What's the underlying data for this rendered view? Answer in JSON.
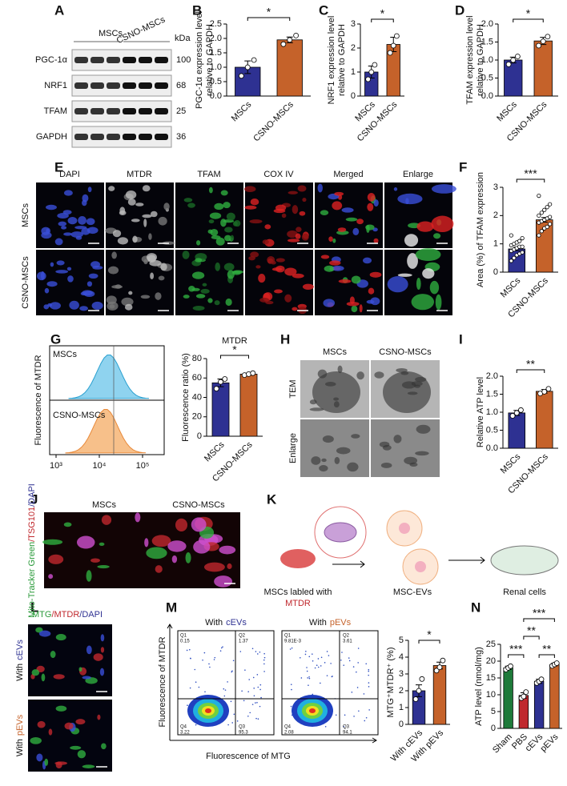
{
  "panels": {
    "A": {
      "label": "A",
      "groups": [
        "MSCs",
        "CSNO-MSCs"
      ],
      "unit": "kDa",
      "rows": [
        {
          "protein": "PGC-1α",
          "kda": 100
        },
        {
          "protein": "NRF1",
          "kda": 68
        },
        {
          "protein": "TFAM",
          "kda": 25
        },
        {
          "protein": "GAPDH",
          "kda": 36
        }
      ]
    },
    "B": {
      "label": "B",
      "type": "bar",
      "ylabel": [
        "PGC-1α expression level",
        "relative to GAPDH"
      ],
      "categories": [
        "MSCs",
        "CSNO-MSCs"
      ],
      "values": [
        1.0,
        1.95
      ],
      "errors": [
        0.22,
        0.1
      ],
      "points": [
        [
          0.7,
          1.0,
          1.25
        ],
        [
          1.8,
          1.95,
          2.1
        ]
      ],
      "colors": [
        "#2e3192",
        "#c5622a"
      ],
      "ylim": [
        0,
        2.5
      ],
      "yticks": [
        {
          "value": 0,
          "label": "0.0"
        },
        0.5,
        {
          "value": 1,
          "label": "1.0"
        },
        1.5,
        {
          "value": 2,
          "label": "2.0"
        },
        2.5
      ],
      "significance": [
        "*"
      ]
    },
    "C": {
      "label": "C",
      "type": "bar",
      "ylabel": [
        "NRF1 expression level",
        "relative to GAPDH"
      ],
      "categories": [
        "MSCs",
        "CSNO-MSCs"
      ],
      "values": [
        1.0,
        2.15
      ],
      "errors": [
        0.25,
        0.3
      ],
      "points": [
        [
          0.7,
          1.0,
          1.3
        ],
        [
          1.8,
          2.1,
          2.5
        ]
      ],
      "colors": [
        "#2e3192",
        "#c5622a"
      ],
      "ylim": [
        0,
        3
      ],
      "yticks": [
        0,
        1,
        2,
        3
      ],
      "significance": [
        "*"
      ]
    },
    "D": {
      "label": "D",
      "type": "bar",
      "ylabel": [
        "TFAM expression level",
        "relative to GAPDH"
      ],
      "categories": [
        "MSCs",
        "CSNO-MSCs"
      ],
      "values": [
        1.0,
        1.53
      ],
      "errors": [
        0.08,
        0.1
      ],
      "points": [
        [
          0.88,
          1.0,
          1.1
        ],
        [
          1.4,
          1.52,
          1.65
        ]
      ],
      "colors": [
        "#2e3192",
        "#c5622a"
      ],
      "ylim": [
        0,
        2
      ],
      "yticks": [
        {
          "value": 0,
          "label": "0.0"
        },
        0.5,
        {
          "value": 1,
          "label": "1.0"
        },
        1.5,
        {
          "value": 2,
          "label": "2.0"
        }
      ],
      "significance": [
        "*"
      ]
    },
    "E": {
      "label": "E",
      "columns": [
        "DAPI",
        "MTDR",
        "TFAM",
        "COX IV",
        "Merged",
        "Enlarge"
      ],
      "rows": [
        "MSCs",
        "CSNO-MSCs"
      ]
    },
    "F": {
      "label": "F",
      "type": "bar",
      "ylabel": [
        "Area (%) of TFAM expression"
      ],
      "categories": [
        "MSCs",
        "CSNO-MSCs"
      ],
      "values": [
        0.82,
        1.85
      ],
      "errors": [
        0.06,
        0.08
      ],
      "points": [
        [
          0.4,
          0.5,
          0.6,
          0.65,
          0.7,
          0.75,
          0.8,
          0.85,
          0.9,
          0.9,
          0.95,
          1.0,
          1.05,
          1.1,
          1.2,
          1.3
        ],
        [
          1.3,
          1.45,
          1.55,
          1.6,
          1.7,
          1.75,
          1.8,
          1.85,
          1.9,
          1.95,
          2.0,
          2.1,
          2.2,
          2.3,
          2.4,
          2.7
        ]
      ],
      "colors": [
        "#2e3192",
        "#c5622a"
      ],
      "ylim": [
        0,
        3
      ],
      "yticks": [
        0,
        1,
        2,
        3
      ],
      "significance": [
        "***"
      ]
    },
    "G": {
      "label": "G",
      "histogram": {
        "ylabel": "Fluorescence of MTDR",
        "samples": [
          "MSCs",
          "CSNO-MSCs"
        ],
        "colors": [
          "#8fd3ef",
          "#f7c08a"
        ],
        "xscale": "log",
        "xlim": [
          711,
          316000
        ],
        "xticks": [
          {
            "value": 1000,
            "label": "10³"
          },
          {
            "value": 10000,
            "label": "10⁴"
          },
          {
            "value": 100000,
            "label": "10⁵"
          }
        ]
      },
      "bar": {
        "type": "bar",
        "title": "MTDR",
        "ylabel": [
          "Fluorescence ratio (%)"
        ],
        "categories": [
          "MSCs",
          "CSNO-MSCs"
        ],
        "values": [
          55,
          64
        ],
        "errors": [
          4,
          1
        ],
        "points": [
          [
            49,
            56,
            59
          ],
          [
            63,
            64,
            65
          ]
        ],
        "colors": [
          "#2e3192",
          "#c5622a"
        ],
        "ylim": [
          0,
          80
        ],
        "yticks": [
          0,
          20,
          40,
          60,
          80
        ],
        "significance": [
          "*"
        ]
      }
    },
    "H": {
      "label": "H",
      "columns": [
        "MSCs",
        "CSNO-MSCs"
      ],
      "rows": [
        "TEM",
        "Enlarge"
      ]
    },
    "I": {
      "label": "I",
      "type": "bar",
      "ylabel": [
        "Relative ATP level"
      ],
      "categories": [
        "MSCs",
        "CSNO-MSCs"
      ],
      "values": [
        0.98,
        1.58
      ],
      "errors": [
        0.07,
        0.05
      ],
      "points": [
        [
          0.9,
          0.98,
          1.06
        ],
        [
          1.52,
          1.57,
          1.65
        ]
      ],
      "colors": [
        "#2e3192",
        "#c5622a"
      ],
      "ylim": [
        0,
        2
      ],
      "yticks": [
        {
          "value": 0,
          "label": "0.0"
        },
        0.5,
        {
          "value": 1,
          "label": "1.0"
        },
        1.5,
        {
          "value": 2,
          "label": "2.0"
        }
      ],
      "significance": [
        "**"
      ]
    },
    "J": {
      "label": "J",
      "stain": [
        "Mito-Tracker Green",
        "/TSG101",
        "/DAPI"
      ],
      "stain_colors": [
        "#2a9a3a",
        "#c0282d",
        "#2e3192"
      ],
      "columns": [
        "MSCs",
        "CSNO-MSCs"
      ]
    },
    "K": {
      "label": "K",
      "steps": [
        {
          "text": "MSCs labled with",
          "highlight": "MTDR"
        },
        {
          "text": "MSC-EVs"
        },
        {
          "text": "Renal cells"
        }
      ]
    },
    "L": {
      "label": "L",
      "stain": [
        "MTG",
        "/MTDR",
        "/DAPI"
      ],
      "stain_colors": [
        "#2a9a3a",
        "#c0282d",
        "#2e3192"
      ],
      "rows": [
        {
          "prefix": "With",
          "name": "cEVs",
          "color": "#2e3192"
        },
        {
          "prefix": "With",
          "name": "pEVs",
          "color": "#c5622a"
        }
      ]
    },
    "M": {
      "label": "M",
      "ylabel": "Fluorescence of MTDR",
      "xlabel": "Fluorescence of MTG",
      "plots": [
        {
          "prefix": "With",
          "name": "cEVs",
          "color": "#2e3192",
          "quadrants": [
            {
              "name": "Q1",
              "value": "0.15"
            },
            {
              "name": "Q2",
              "value": "1.37"
            },
            {
              "name": "Q4",
              "value": "3.22"
            },
            {
              "name": "Q3",
              "value": "95.3"
            }
          ]
        },
        {
          "prefix": "With",
          "name": "pEVs",
          "color": "#c5622a",
          "quadrants": [
            {
              "name": "Q1",
              "value": "9.81E-3"
            },
            {
              "name": "Q2",
              "value": "3.61"
            },
            {
              "name": "Q4",
              "value": "2.08"
            },
            {
              "name": "Q3",
              "value": "94.1"
            }
          ]
        }
      ],
      "bar": {
        "type": "bar",
        "ylabel": [
          "MTG⁺MTDR⁺ (%)"
        ],
        "categories": [
          "With cEVs",
          "With pEVs"
        ],
        "values": [
          2.0,
          3.5
        ],
        "errors": [
          0.35,
          0.2
        ],
        "points": [
          [
            1.5,
            2.0,
            2.7
          ],
          [
            3.2,
            3.4,
            3.8
          ]
        ],
        "colors": [
          "#2e3192",
          "#c5622a"
        ],
        "ylim": [
          0,
          5
        ],
        "yticks": [
          0,
          1,
          2,
          3,
          4,
          5
        ],
        "significance": [
          "*"
        ]
      }
    },
    "N": {
      "label": "N",
      "type": "bar",
      "ylabel": [
        "ATP level (nmol/mg)"
      ],
      "categories": [
        "Sham",
        "PBS",
        "cEVs",
        "pEVs"
      ],
      "values": [
        18,
        9.8,
        14,
        19
      ],
      "errors": [
        0.5,
        0.8,
        0.6,
        0.4
      ],
      "points": [
        [
          17.5,
          18,
          18.5
        ],
        [
          9,
          9.5,
          10.8
        ],
        [
          13.5,
          14,
          14.6
        ],
        [
          18.6,
          19,
          19.4
        ]
      ],
      "colors": [
        "#1e7a3a",
        "#c0282d",
        "#2e3192",
        "#c5622a"
      ],
      "ylim": [
        0,
        25
      ],
      "yticks": [
        0,
        5,
        10,
        15,
        20,
        25
      ],
      "significance": [
        "***",
        "**",
        "***",
        "**"
      ]
    }
  }
}
